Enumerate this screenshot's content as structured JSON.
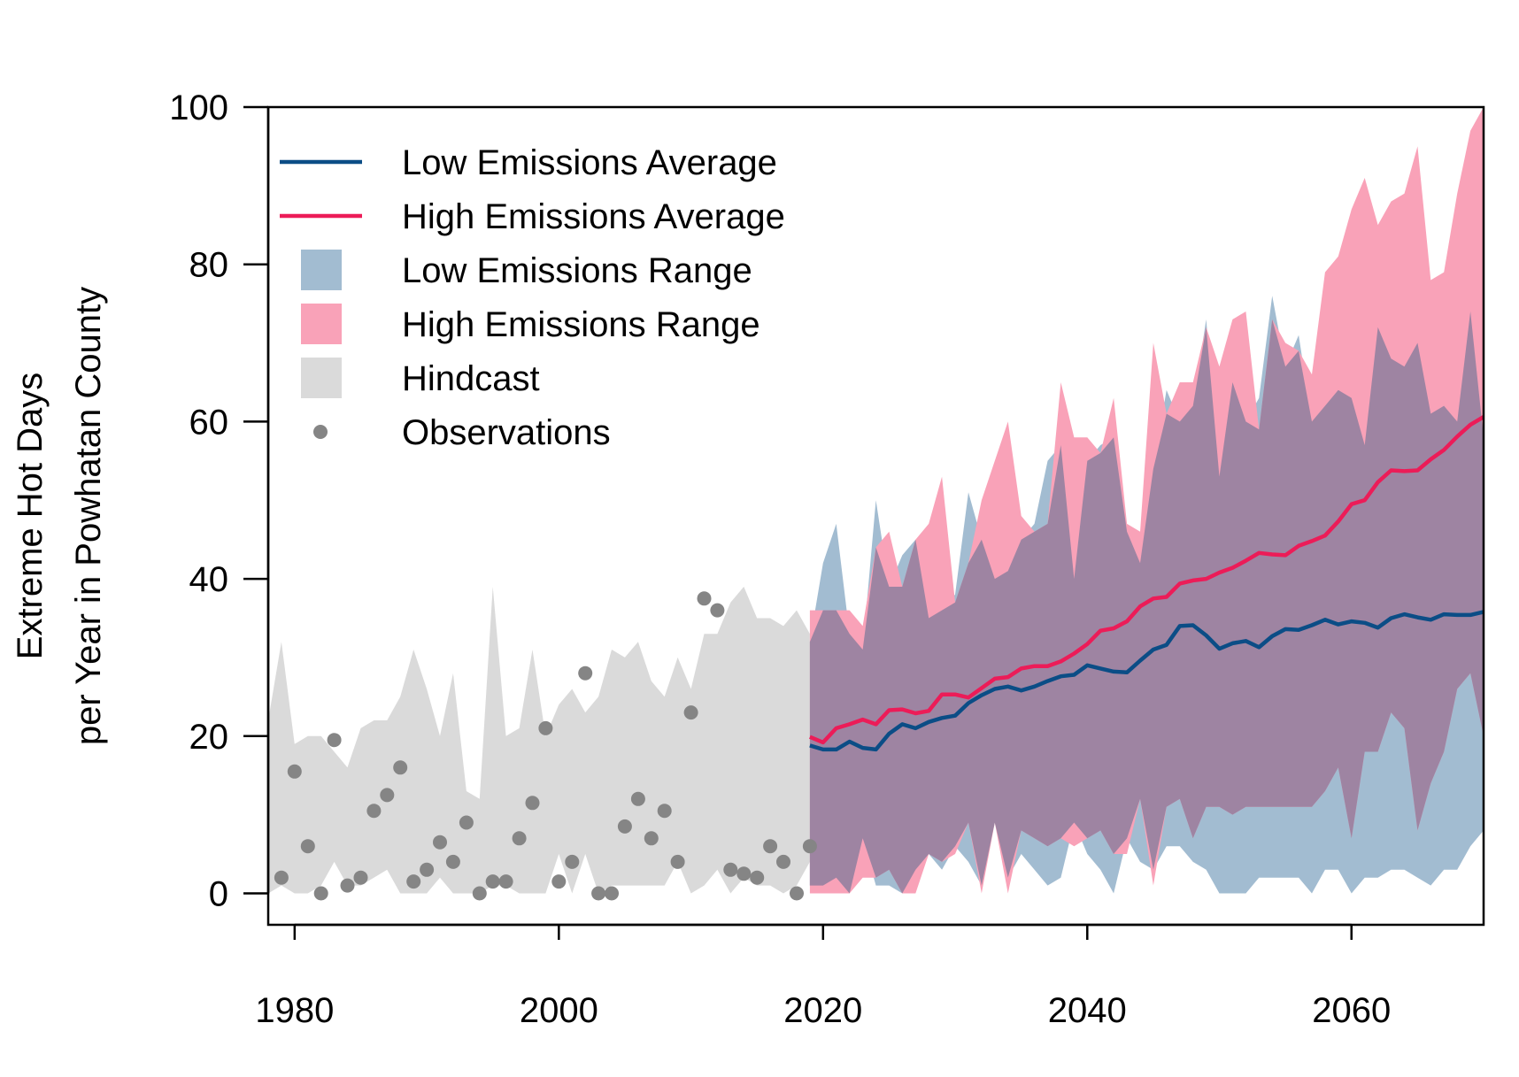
{
  "chart_data": {
    "type": "line",
    "ylabel_line1": "Extreme Hot Days",
    "ylabel_line2": "per Year in Powhatan County",
    "xlim": [
      1978,
      2070
    ],
    "ylim": [
      -4,
      100
    ],
    "x_ticks": [
      1980,
      2000,
      2020,
      2040,
      2060
    ],
    "y_ticks": [
      0,
      20,
      40,
      60,
      80,
      100
    ],
    "grid": false,
    "legend_position": "top-left",
    "legend": [
      {
        "label": "Low Emissions Average",
        "kind": "line",
        "color": "#0b4d86"
      },
      {
        "label": "High Emissions Average",
        "kind": "line",
        "color": "#ec1c58"
      },
      {
        "label": "Low Emissions Range",
        "kind": "fill",
        "color": "#a2bcd1"
      },
      {
        "label": "High Emissions Range",
        "kind": "fill",
        "color": "#f9a2b8"
      },
      {
        "label": "Hindcast",
        "kind": "fill",
        "color": "#dadada"
      },
      {
        "label": "Observations",
        "kind": "point",
        "color": "#858585"
      }
    ],
    "colors": {
      "low_avg": "#0b4d86",
      "high_avg": "#ec1c58",
      "low_range": "#a2bcd1",
      "high_range": "#f9a2b8",
      "overlap": "#9e84a2",
      "hindcast": "#dadada",
      "observations": "#858585"
    },
    "hindcast": {
      "x": [
        1978,
        1979,
        1980,
        1981,
        1982,
        1983,
        1984,
        1985,
        1986,
        1987,
        1988,
        1989,
        1990,
        1991,
        1992,
        1993,
        1994,
        1995,
        1996,
        1997,
        1998,
        1999,
        2000,
        2001,
        2002,
        2003,
        2004,
        2005,
        2006,
        2007,
        2008,
        2009,
        2010,
        2011,
        2012,
        2013,
        2014,
        2015,
        2016,
        2017,
        2018,
        2019
      ],
      "upper": [
        22,
        32,
        19,
        20,
        20,
        18,
        16,
        21,
        22,
        22,
        25,
        31,
        26,
        20,
        28,
        13,
        12,
        39,
        20,
        21,
        31,
        20,
        24,
        26,
        23,
        25,
        31,
        30,
        32,
        27,
        25,
        30,
        26,
        33,
        33,
        37,
        39,
        35,
        35,
        34,
        36,
        33
      ],
      "lower": [
        0,
        1,
        0,
        0,
        1,
        4,
        1,
        1,
        2,
        3,
        0,
        0,
        0,
        2,
        0,
        0,
        0,
        1,
        1,
        0,
        0,
        0,
        5,
        0,
        5,
        0,
        1,
        1,
        1,
        1,
        1,
        4,
        0,
        1,
        3,
        0,
        2,
        1,
        1,
        0,
        1,
        4
      ]
    },
    "observations": {
      "x": [
        1979,
        1980,
        1981,
        1982,
        1983,
        1984,
        1985,
        1986,
        1987,
        1988,
        1989,
        1990,
        1991,
        1992,
        1993,
        1994,
        1995,
        1996,
        1997,
        1998,
        1999,
        2000,
        2001,
        2002,
        2003,
        2004,
        2005,
        2006,
        2007,
        2008,
        2009,
        2010,
        2011,
        2012,
        2013,
        2014,
        2015,
        2016,
        2017,
        2018,
        2019
      ],
      "y": [
        2,
        15.5,
        6,
        0,
        19.5,
        1,
        2,
        10.5,
        12.5,
        16,
        1.5,
        3,
        6.5,
        4,
        9,
        0,
        1.5,
        1.5,
        7,
        11.5,
        21,
        1.5,
        4,
        28,
        0,
        0,
        8.5,
        12,
        7,
        10.5,
        4,
        23,
        37.5,
        36,
        3,
        2.5,
        2,
        6,
        4,
        0,
        6
      ]
    },
    "low_range": {
      "x": [
        2019,
        2020,
        2021,
        2022,
        2023,
        2024,
        2025,
        2026,
        2027,
        2028,
        2029,
        2030,
        2031,
        2032,
        2033,
        2034,
        2035,
        2036,
        2037,
        2038,
        2039,
        2040,
        2041,
        2042,
        2043,
        2044,
        2045,
        2046,
        2047,
        2048,
        2049,
        2050,
        2051,
        2052,
        2053,
        2054,
        2055,
        2056,
        2057,
        2058,
        2059,
        2060,
        2061,
        2062,
        2063,
        2064,
        2065,
        2066,
        2067,
        2068,
        2069,
        2070
      ],
      "upper": [
        32,
        42,
        47,
        33,
        31,
        50,
        39,
        43,
        45,
        35,
        36,
        38,
        51,
        45,
        40,
        41,
        45,
        47,
        55,
        57,
        40,
        55,
        57,
        58,
        46,
        42,
        54,
        64,
        60,
        62,
        73,
        53,
        65,
        60,
        63,
        76,
        67,
        71,
        60,
        62,
        64,
        63,
        57,
        72,
        68,
        67,
        70,
        61,
        62,
        60,
        74,
        58
      ],
      "lower": [
        1,
        1,
        2,
        0,
        7,
        1,
        1,
        0,
        3,
        5,
        3,
        6,
        4,
        1,
        9,
        2,
        5,
        3,
        1,
        2,
        9,
        5,
        3,
        0,
        7,
        4,
        3,
        6,
        6,
        4,
        3,
        0,
        0,
        0,
        2,
        2,
        2,
        2,
        0,
        3,
        3,
        0,
        2,
        2,
        3,
        3,
        2,
        1,
        3,
        3,
        6,
        8
      ]
    },
    "high_range": {
      "x": [
        2019,
        2020,
        2021,
        2022,
        2023,
        2024,
        2025,
        2026,
        2027,
        2028,
        2029,
        2030,
        2031,
        2032,
        2033,
        2034,
        2035,
        2036,
        2037,
        2038,
        2039,
        2040,
        2041,
        2042,
        2043,
        2044,
        2045,
        2046,
        2047,
        2048,
        2049,
        2050,
        2051,
        2052,
        2053,
        2054,
        2055,
        2056,
        2057,
        2058,
        2059,
        2060,
        2061,
        2062,
        2063,
        2064,
        2065,
        2066,
        2067,
        2068,
        2069,
        2070
      ],
      "upper": [
        36,
        36,
        36,
        36,
        34,
        44,
        46,
        39,
        45,
        47,
        53,
        37,
        42,
        50,
        55,
        60,
        48,
        46,
        47,
        65,
        58,
        58,
        56,
        63,
        47,
        46,
        70,
        61,
        65,
        65,
        72,
        67,
        73,
        74,
        59,
        73,
        70,
        69,
        66,
        79,
        81,
        87,
        91,
        85,
        88,
        89,
        95,
        78,
        79,
        89,
        97,
        100
      ],
      "lower": [
        0,
        0,
        0,
        0,
        2,
        2,
        3,
        0,
        0,
        5,
        4,
        5,
        9,
        0,
        9,
        0,
        8,
        7,
        6,
        7,
        6,
        7,
        8,
        5,
        5,
        12,
        1,
        11,
        12,
        7,
        11,
        11,
        10,
        11,
        11,
        11,
        11,
        11,
        11,
        13,
        16,
        7,
        18,
        18,
        23,
        21,
        8,
        14,
        18,
        26,
        28,
        20
      ]
    },
    "low_avg": {
      "x": [
        2019,
        2020,
        2021,
        2022,
        2023,
        2024,
        2025,
        2026,
        2027,
        2028,
        2029,
        2030,
        2031,
        2032,
        2033,
        2034,
        2035,
        2036,
        2037,
        2038,
        2039,
        2040,
        2041,
        2042,
        2043,
        2044,
        2045,
        2046,
        2047,
        2048,
        2049,
        2050,
        2051,
        2052,
        2053,
        2054,
        2055,
        2056,
        2057,
        2058,
        2059,
        2060,
        2061,
        2062,
        2063,
        2064,
        2065,
        2066,
        2067,
        2068,
        2069,
        2070
      ],
      "y": [
        18.8,
        18.3,
        18.3,
        19.3,
        18.5,
        18.3,
        20.3,
        21.5,
        21,
        21.8,
        22.3,
        22.6,
        24.2,
        25.2,
        26,
        26.3,
        25.8,
        26.3,
        27,
        27.6,
        27.8,
        29,
        28.6,
        28.2,
        28.1,
        29.6,
        31,
        31.6,
        34,
        34.1,
        32.8,
        31.1,
        31.8,
        32.1,
        31.3,
        32.7,
        33.6,
        33.5,
        34.1,
        34.8,
        34.2,
        34.6,
        34.4,
        33.8,
        35,
        35.5,
        35.1,
        34.8,
        35.5,
        35.4,
        35.4,
        35.8
      ]
    },
    "high_avg": {
      "x": [
        2019,
        2020,
        2021,
        2022,
        2023,
        2024,
        2025,
        2026,
        2027,
        2028,
        2029,
        2030,
        2031,
        2032,
        2033,
        2034,
        2035,
        2036,
        2037,
        2038,
        2039,
        2040,
        2041,
        2042,
        2043,
        2044,
        2045,
        2046,
        2047,
        2048,
        2049,
        2050,
        2051,
        2052,
        2053,
        2054,
        2055,
        2056,
        2057,
        2058,
        2059,
        2060,
        2061,
        2062,
        2063,
        2064,
        2065,
        2066,
        2067,
        2068,
        2069,
        2070
      ],
      "y": [
        19.9,
        19.2,
        21,
        21.5,
        22.1,
        21.5,
        23.3,
        23.4,
        22.9,
        23.2,
        25.3,
        25.3,
        24.9,
        26.1,
        27.3,
        27.5,
        28.6,
        28.9,
        28.9,
        29.5,
        30.5,
        31.7,
        33.4,
        33.7,
        34.6,
        36.5,
        37.5,
        37.7,
        39.4,
        39.8,
        40,
        40.8,
        41.4,
        42.3,
        43.3,
        43.1,
        43,
        44.2,
        44.8,
        45.5,
        47.3,
        49.5,
        50,
        52.3,
        53.8,
        53.7,
        53.8,
        55.2,
        56.4,
        58.1,
        59.6,
        60.6
      ]
    }
  }
}
